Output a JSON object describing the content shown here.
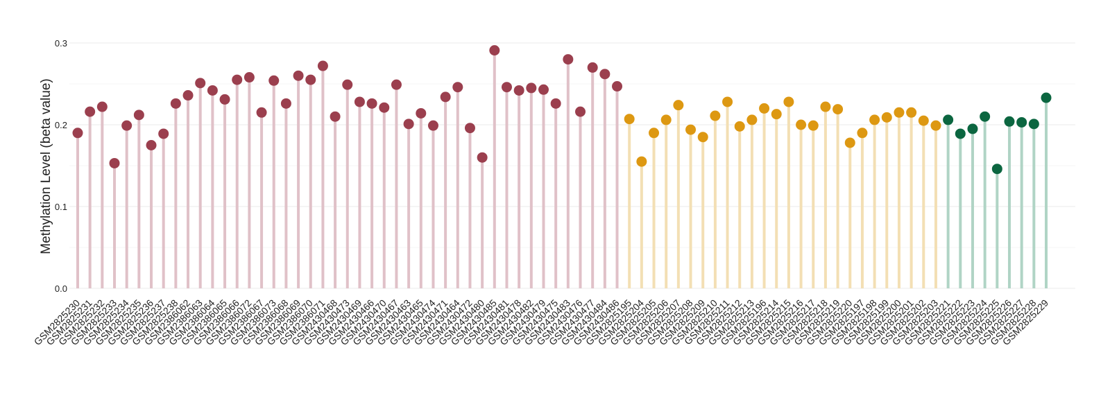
{
  "chart_data": {
    "type": "lollipop",
    "ylabel": "Methylation Level (beta value)",
    "ylim": [
      0,
      0.3
    ],
    "yticks": [
      "0.0",
      "0.1",
      "0.2",
      "0.3"
    ],
    "grid": true,
    "colors": {
      "group1": {
        "point": "#9b3f4e",
        "stem": "#e0c1c8"
      },
      "group2": {
        "point": "#dd9812",
        "stem": "#f3dfb4"
      },
      "group3": {
        "point": "#0b6640",
        "stem": "#b0d4c5"
      }
    },
    "points": [
      {
        "label": "GSM2825230",
        "value": 0.19,
        "group": "group1"
      },
      {
        "label": "GSM2825231",
        "value": 0.216,
        "group": "group1"
      },
      {
        "label": "GSM2825232",
        "value": 0.222,
        "group": "group1"
      },
      {
        "label": "GSM2825233",
        "value": 0.153,
        "group": "group1"
      },
      {
        "label": "GSM2825234",
        "value": 0.199,
        "group": "group1"
      },
      {
        "label": "GSM2825235",
        "value": 0.212,
        "group": "group1"
      },
      {
        "label": "GSM2825236",
        "value": 0.175,
        "group": "group1"
      },
      {
        "label": "GSM2825237",
        "value": 0.189,
        "group": "group1"
      },
      {
        "label": "GSM2825238",
        "value": 0.226,
        "group": "group1"
      },
      {
        "label": "GSM2386062",
        "value": 0.236,
        "group": "group1"
      },
      {
        "label": "GSM2386063",
        "value": 0.251,
        "group": "group1"
      },
      {
        "label": "GSM2386064",
        "value": 0.242,
        "group": "group1"
      },
      {
        "label": "GSM2386065",
        "value": 0.231,
        "group": "group1"
      },
      {
        "label": "GSM2386066",
        "value": 0.255,
        "group": "group1"
      },
      {
        "label": "GSM2386072",
        "value": 0.258,
        "group": "group1"
      },
      {
        "label": "GSM2386067",
        "value": 0.215,
        "group": "group1"
      },
      {
        "label": "GSM2386073",
        "value": 0.254,
        "group": "group1"
      },
      {
        "label": "GSM2386068",
        "value": 0.226,
        "group": "group1"
      },
      {
        "label": "GSM2386069",
        "value": 0.26,
        "group": "group1"
      },
      {
        "label": "GSM2386070",
        "value": 0.255,
        "group": "group1"
      },
      {
        "label": "GSM2386071",
        "value": 0.272,
        "group": "group1"
      },
      {
        "label": "GSM2430468",
        "value": 0.21,
        "group": "group1"
      },
      {
        "label": "GSM2430473",
        "value": 0.249,
        "group": "group1"
      },
      {
        "label": "GSM2430469",
        "value": 0.228,
        "group": "group1"
      },
      {
        "label": "GSM2430466",
        "value": 0.226,
        "group": "group1"
      },
      {
        "label": "GSM2430470",
        "value": 0.221,
        "group": "group1"
      },
      {
        "label": "GSM2430467",
        "value": 0.249,
        "group": "group1"
      },
      {
        "label": "GSM2430463",
        "value": 0.201,
        "group": "group1"
      },
      {
        "label": "GSM2430465",
        "value": 0.214,
        "group": "group1"
      },
      {
        "label": "GSM2430474",
        "value": 0.199,
        "group": "group1"
      },
      {
        "label": "GSM2430471",
        "value": 0.234,
        "group": "group1"
      },
      {
        "label": "GSM2430464",
        "value": 0.246,
        "group": "group1"
      },
      {
        "label": "GSM2430472",
        "value": 0.196,
        "group": "group1"
      },
      {
        "label": "GSM2430480",
        "value": 0.16,
        "group": "group1"
      },
      {
        "label": "GSM2430485",
        "value": 0.291,
        "group": "group1"
      },
      {
        "label": "GSM2430481",
        "value": 0.246,
        "group": "group1"
      },
      {
        "label": "GSM2430478",
        "value": 0.242,
        "group": "group1"
      },
      {
        "label": "GSM2430482",
        "value": 0.245,
        "group": "group1"
      },
      {
        "label": "GSM2430479",
        "value": 0.243,
        "group": "group1"
      },
      {
        "label": "GSM2430475",
        "value": 0.226,
        "group": "group1"
      },
      {
        "label": "GSM2430483",
        "value": 0.28,
        "group": "group1"
      },
      {
        "label": "GSM2430476",
        "value": 0.216,
        "group": "group1"
      },
      {
        "label": "GSM2430477",
        "value": 0.27,
        "group": "group1"
      },
      {
        "label": "GSM2430484",
        "value": 0.262,
        "group": "group1"
      },
      {
        "label": "GSM2430486",
        "value": 0.247,
        "group": "group1"
      },
      {
        "label": "GSM2825195",
        "value": 0.207,
        "group": "group2"
      },
      {
        "label": "GSM2825204",
        "value": 0.155,
        "group": "group2"
      },
      {
        "label": "GSM2825205",
        "value": 0.19,
        "group": "group2"
      },
      {
        "label": "GSM2825206",
        "value": 0.206,
        "group": "group2"
      },
      {
        "label": "GSM2825207",
        "value": 0.224,
        "group": "group2"
      },
      {
        "label": "GSM2825208",
        "value": 0.194,
        "group": "group2"
      },
      {
        "label": "GSM2825209",
        "value": 0.185,
        "group": "group2"
      },
      {
        "label": "GSM2825210",
        "value": 0.211,
        "group": "group2"
      },
      {
        "label": "GSM2825211",
        "value": 0.228,
        "group": "group2"
      },
      {
        "label": "GSM2825212",
        "value": 0.198,
        "group": "group2"
      },
      {
        "label": "GSM2825213",
        "value": 0.206,
        "group": "group2"
      },
      {
        "label": "GSM2825196",
        "value": 0.22,
        "group": "group2"
      },
      {
        "label": "GSM2825214",
        "value": 0.213,
        "group": "group2"
      },
      {
        "label": "GSM2825215",
        "value": 0.228,
        "group": "group2"
      },
      {
        "label": "GSM2825216",
        "value": 0.2,
        "group": "group2"
      },
      {
        "label": "GSM2825217",
        "value": 0.199,
        "group": "group2"
      },
      {
        "label": "GSM2825218",
        "value": 0.222,
        "group": "group2"
      },
      {
        "label": "GSM2825219",
        "value": 0.219,
        "group": "group2"
      },
      {
        "label": "GSM2825220",
        "value": 0.178,
        "group": "group2"
      },
      {
        "label": "GSM2825197",
        "value": 0.19,
        "group": "group2"
      },
      {
        "label": "GSM2825198",
        "value": 0.206,
        "group": "group2"
      },
      {
        "label": "GSM2825199",
        "value": 0.209,
        "group": "group2"
      },
      {
        "label": "GSM2825200",
        "value": 0.215,
        "group": "group2"
      },
      {
        "label": "GSM2825201",
        "value": 0.215,
        "group": "group2"
      },
      {
        "label": "GSM2825202",
        "value": 0.205,
        "group": "group2"
      },
      {
        "label": "GSM2825203",
        "value": 0.199,
        "group": "group2"
      },
      {
        "label": "GSM2825221",
        "value": 0.206,
        "group": "group3"
      },
      {
        "label": "GSM2825222",
        "value": 0.189,
        "group": "group3"
      },
      {
        "label": "GSM2825223",
        "value": 0.195,
        "group": "group3"
      },
      {
        "label": "GSM2825224",
        "value": 0.21,
        "group": "group3"
      },
      {
        "label": "GSM2825225",
        "value": 0.146,
        "group": "group3"
      },
      {
        "label": "GSM2825226",
        "value": 0.204,
        "group": "group3"
      },
      {
        "label": "GSM2825227",
        "value": 0.203,
        "group": "group3"
      },
      {
        "label": "GSM2825228",
        "value": 0.201,
        "group": "group3"
      },
      {
        "label": "GSM2825229",
        "value": 0.233,
        "group": "group3"
      }
    ]
  }
}
